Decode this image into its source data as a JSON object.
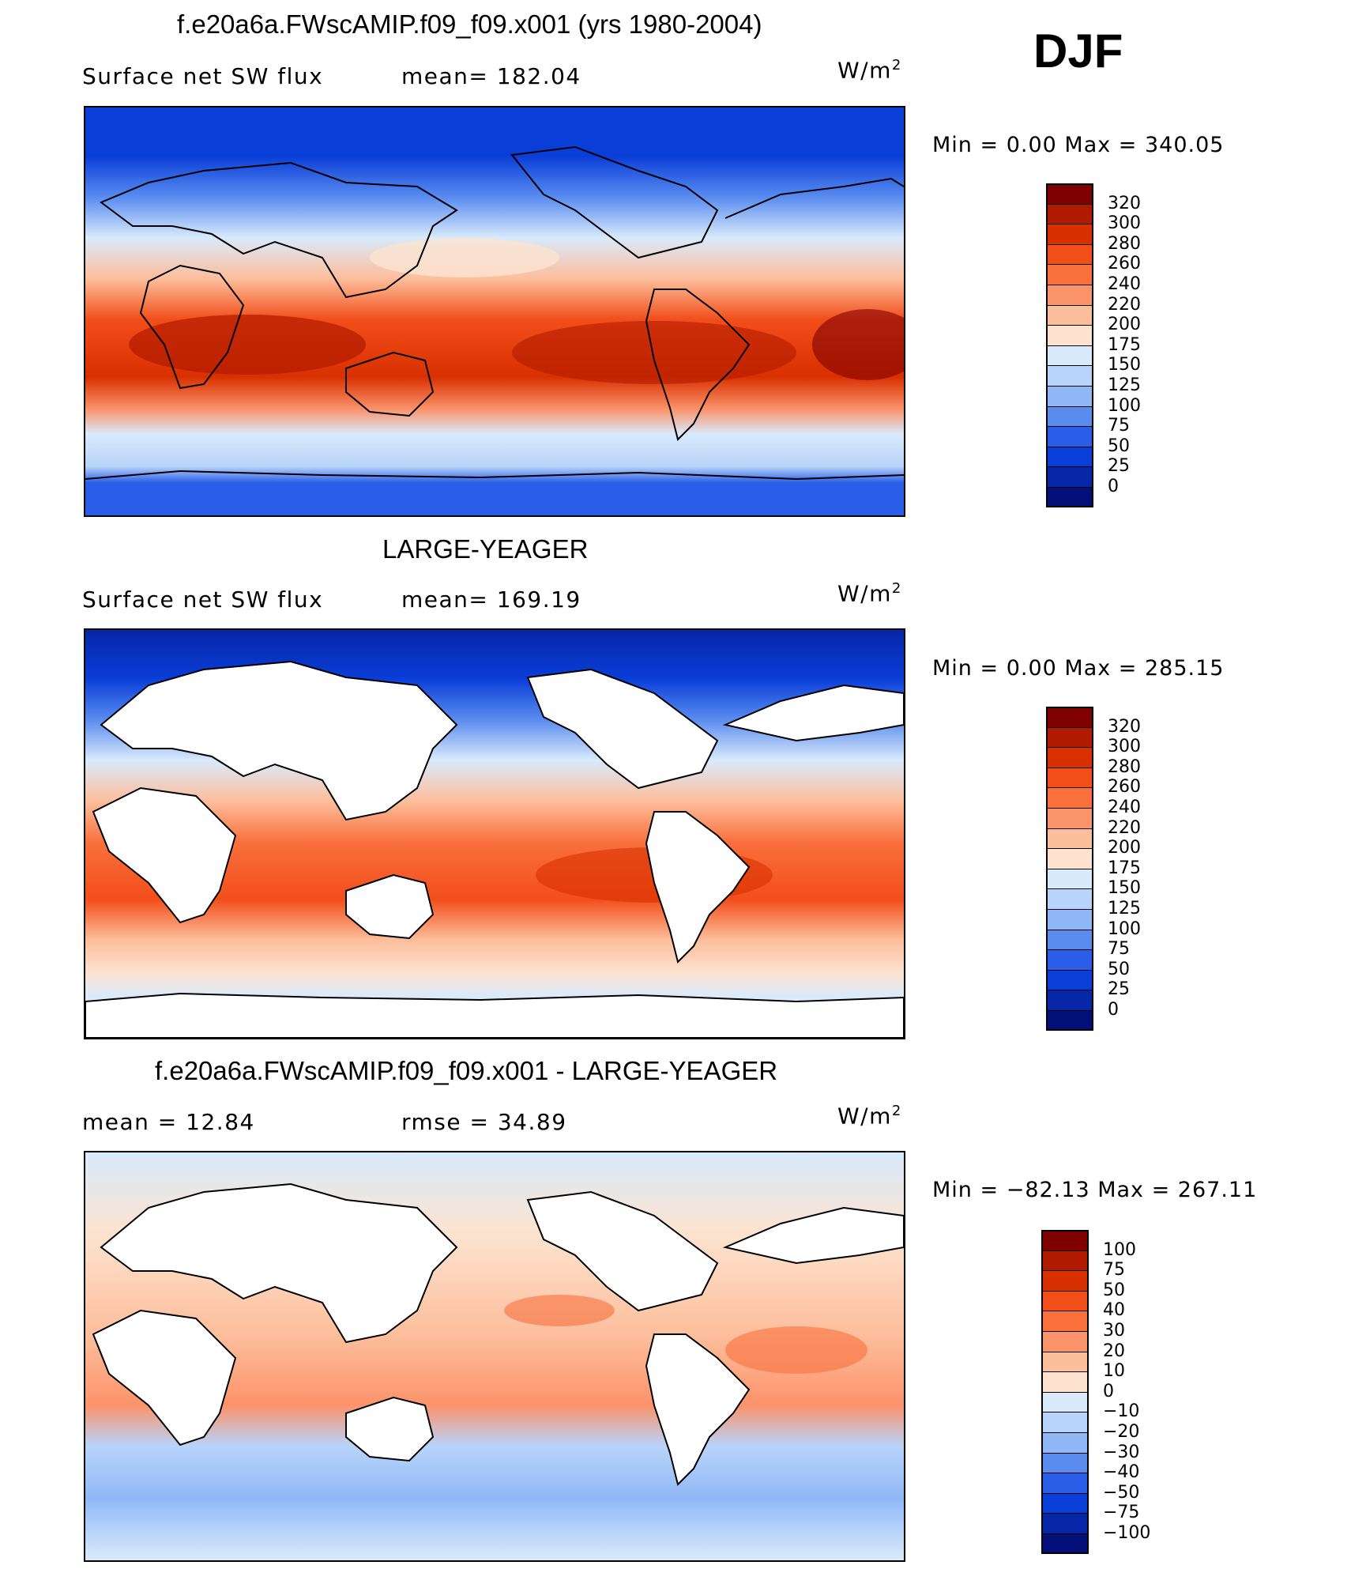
{
  "season": "DJF",
  "panels": [
    {
      "title": "f.e20a6a.FWscAMIP.f09_f09.x001 (yrs 1980-2004)",
      "left_label": "Surface net SW flux",
      "mid_label": "mean=  182.04",
      "units_base": "W/m",
      "units_exp": "2",
      "minmax": "Min =     0.00  Max  =  340.05",
      "colorbar_ticks": [
        "320",
        "300",
        "280",
        "260",
        "240",
        "220",
        "200",
        "175",
        "150",
        "125",
        "100",
        "75",
        "50",
        "25",
        "0"
      ],
      "land_masked": false
    },
    {
      "title": "LARGE-YEAGER",
      "left_label": "Surface net SW flux",
      "mid_label": "mean=  169.19",
      "units_base": "W/m",
      "units_exp": "2",
      "minmax": "Min =     0.00  Max  =  285.15",
      "colorbar_ticks": [
        "320",
        "300",
        "280",
        "260",
        "240",
        "220",
        "200",
        "175",
        "150",
        "125",
        "100",
        "75",
        "50",
        "25",
        "0"
      ],
      "land_masked": true
    },
    {
      "title": "f.e20a6a.FWscAMIP.f09_f09.x001 - LARGE-YEAGER",
      "left_label": "mean  =     12.84",
      "mid_label": "rmse  =     34.89",
      "units_base": "W/m",
      "units_exp": "2",
      "minmax": "Min  =  −82.13  Max  =  267.11",
      "colorbar_ticks": [
        "100",
        "75",
        "50",
        "40",
        "30",
        "20",
        "10",
        "0",
        "−10",
        "−20",
        "−30",
        "−40",
        "−50",
        "−75",
        "−100"
      ],
      "land_masked": true
    }
  ],
  "colors": {
    "field_scale": [
      "#7f0000",
      "#b21a00",
      "#d83000",
      "#f24e1a",
      "#f9703d",
      "#fb936b",
      "#fdbe9c",
      "#fde3cf",
      "#d9eafb",
      "#b8d4fa",
      "#90b8f6",
      "#5a8cf0",
      "#2a5ee8",
      "#0a3ed8",
      "#0626a8",
      "#04107a"
    ],
    "diff_scale": [
      "#7f0000",
      "#b21a00",
      "#d83000",
      "#f24e1a",
      "#f9703d",
      "#fb936b",
      "#fdbe9c",
      "#fde3cf",
      "#d9eafb",
      "#b8d4fa",
      "#90b8f6",
      "#5a8cf0",
      "#2a5ee8",
      "#0a3ed8",
      "#0626a8",
      "#04107a"
    ]
  }
}
